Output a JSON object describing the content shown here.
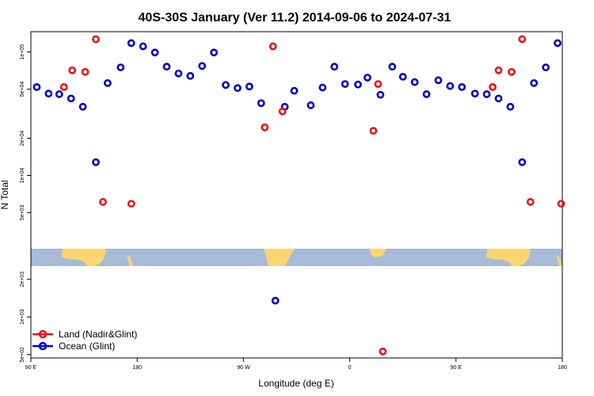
{
  "chart_data": {
    "type": "scatter",
    "title": "40S-30S January (Ver 11.2)   2014-09-06 to 2024-07-31",
    "xlabel": "Longitude (deg E)",
    "ylabel": "N Total",
    "x_ticks": [
      {
        "value": 90,
        "label": "90 E"
      },
      {
        "value": 180,
        "label": "180"
      },
      {
        "value": 270,
        "label": "90 W"
      },
      {
        "value": 360,
        "label": "0"
      },
      {
        "value": 450,
        "label": "90 E"
      },
      {
        "value": 540,
        "label": "180"
      }
    ],
    "upper_ticks": [
      {
        "value": 100000,
        "label": "1e+05"
      },
      {
        "value": 50000,
        "label": "5e+04"
      },
      {
        "value": 20000,
        "label": "2e+04"
      },
      {
        "value": 10000,
        "label": "1e+04"
      },
      {
        "value": 5000,
        "label": "5e+03"
      }
    ],
    "lower_ticks": [
      {
        "value": 2000,
        "label": "2e+03"
      },
      {
        "value": 1000,
        "label": "1e+03"
      },
      {
        "value": 500,
        "label": "5e+02"
      }
    ],
    "series": [
      {
        "name": "Land (Nadir&Glint)",
        "color": "#ee1111",
        "points": [
          [
            118,
            52000
          ],
          [
            125,
            71000
          ],
          [
            136,
            69000
          ],
          [
            145,
            127000
          ],
          [
            151,
            6100
          ],
          [
            175,
            5900
          ],
          [
            295,
            111000
          ],
          [
            288,
            24500
          ],
          [
            303,
            33000
          ],
          [
            380,
            23000
          ],
          [
            384,
            55000
          ],
          [
            388,
            530
          ],
          [
            481,
            52000
          ],
          [
            486,
            71000
          ],
          [
            497,
            69000
          ],
          [
            506,
            127000
          ],
          [
            513,
            6100
          ],
          [
            539,
            5900
          ]
        ]
      },
      {
        "name": "Ocean (Glint)",
        "color": "#0000cc",
        "points": [
          [
            95,
            52000
          ],
          [
            105,
            46000
          ],
          [
            114,
            45500
          ],
          [
            124,
            42000
          ],
          [
            134,
            36000
          ],
          [
            145,
            12800
          ],
          [
            155,
            56000
          ],
          [
            166,
            75000
          ],
          [
            175,
            118000
          ],
          [
            185,
            111000
          ],
          [
            195,
            99000
          ],
          [
            205,
            76000
          ],
          [
            215,
            67000
          ],
          [
            225,
            64000
          ],
          [
            235,
            77000
          ],
          [
            245,
            99000
          ],
          [
            255,
            54000
          ],
          [
            265,
            51000
          ],
          [
            275,
            52500
          ],
          [
            285,
            38500
          ],
          [
            297,
            1350
          ],
          [
            305,
            36000
          ],
          [
            313,
            48500
          ],
          [
            327,
            37000
          ],
          [
            337,
            51500
          ],
          [
            347,
            76000
          ],
          [
            356,
            55000
          ],
          [
            367,
            54500
          ],
          [
            375,
            62000
          ],
          [
            386,
            45000
          ],
          [
            396,
            76000
          ],
          [
            405,
            63000
          ],
          [
            415,
            57000
          ],
          [
            425,
            45500
          ],
          [
            435,
            59000
          ],
          [
            445,
            53000
          ],
          [
            455,
            52000
          ],
          [
            466,
            46000
          ],
          [
            476,
            45500
          ],
          [
            486,
            42000
          ],
          [
            496,
            36000
          ],
          [
            506,
            12800
          ],
          [
            516,
            56000
          ],
          [
            526,
            75000
          ],
          [
            536,
            118000
          ]
        ]
      }
    ],
    "legend_position": "bottom-left"
  }
}
